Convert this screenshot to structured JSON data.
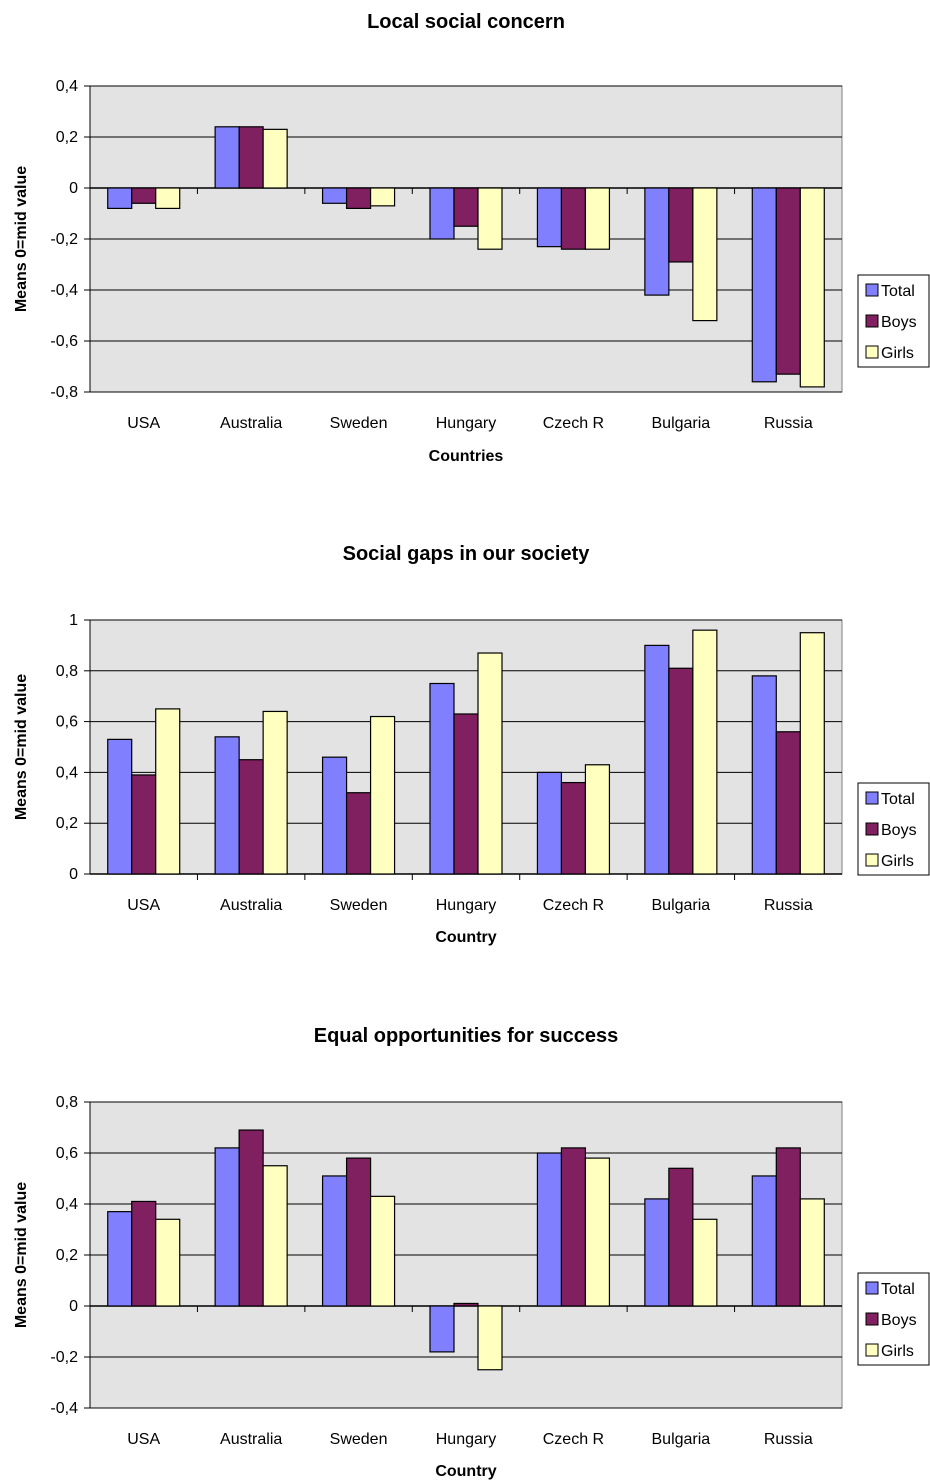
{
  "colors": {
    "plot_background": "#e3e3e3",
    "gridline": "#000000",
    "Total": "#8080ff",
    "Boys": "#802060",
    "Girls": "#ffffc0"
  },
  "chart_data": [
    {
      "type": "bar",
      "title": "Local social concern",
      "xlabel": "Countries",
      "ylabel": "Means 0=mid value",
      "categories": [
        "USA",
        "Australia",
        "Sweden",
        "Hungary",
        "Czech R",
        "Bulgaria",
        "Russia"
      ],
      "ylim": [
        -0.8,
        0.4
      ],
      "yticks": [
        0.4,
        0.2,
        0,
        -0.2,
        -0.4,
        -0.6,
        -0.8
      ],
      "ytick_labels": [
        "0,4",
        "0,2",
        "0",
        "-0,2",
        "-0,4",
        "-0,6",
        "-0,8"
      ],
      "grid": true,
      "legend_position": "right",
      "series": [
        {
          "name": "Total",
          "values": [
            -0.08,
            0.24,
            -0.06,
            -0.2,
            -0.23,
            -0.42,
            -0.76
          ]
        },
        {
          "name": "Boys",
          "values": [
            -0.06,
            0.24,
            -0.08,
            -0.15,
            -0.24,
            -0.29,
            -0.73
          ]
        },
        {
          "name": "Girls",
          "values": [
            -0.08,
            0.23,
            -0.07,
            -0.24,
            -0.24,
            -0.52,
            -0.78
          ]
        }
      ]
    },
    {
      "type": "bar",
      "title": "Social gaps in our society",
      "xlabel": "Country",
      "ylabel": "Means 0=mid value",
      "categories": [
        "USA",
        "Australia",
        "Sweden",
        "Hungary",
        "Czech R",
        "Bulgaria",
        "Russia"
      ],
      "ylim": [
        0,
        1
      ],
      "yticks": [
        1,
        0.8,
        0.6,
        0.4,
        0.2,
        0
      ],
      "ytick_labels": [
        "1",
        "0,8",
        "0,6",
        "0,4",
        "0,2",
        "0"
      ],
      "grid": true,
      "legend_position": "right",
      "series": [
        {
          "name": "Total",
          "values": [
            0.53,
            0.54,
            0.46,
            0.75,
            0.4,
            0.9,
            0.78
          ]
        },
        {
          "name": "Boys",
          "values": [
            0.39,
            0.45,
            0.32,
            0.63,
            0.36,
            0.81,
            0.56
          ]
        },
        {
          "name": "Girls",
          "values": [
            0.65,
            0.64,
            0.62,
            0.87,
            0.43,
            0.96,
            0.95
          ]
        }
      ]
    },
    {
      "type": "bar",
      "title": "Equal opportunities for success",
      "xlabel": "Country",
      "ylabel": "Means 0=mid value",
      "categories": [
        "USA",
        "Australia",
        "Sweden",
        "Hungary",
        "Czech R",
        "Bulgaria",
        "Russia"
      ],
      "ylim": [
        -0.4,
        0.8
      ],
      "yticks": [
        0.8,
        0.6,
        0.4,
        0.2,
        0,
        -0.2,
        -0.4
      ],
      "ytick_labels": [
        "0,8",
        "0,6",
        "0,4",
        "0,2",
        "0",
        "-0,2",
        "-0,4"
      ],
      "grid": true,
      "legend_position": "right",
      "series": [
        {
          "name": "Total",
          "values": [
            0.37,
            0.62,
            0.51,
            -0.18,
            0.6,
            0.42,
            0.51
          ]
        },
        {
          "name": "Boys",
          "values": [
            0.41,
            0.69,
            0.58,
            0.01,
            0.62,
            0.54,
            0.62
          ]
        },
        {
          "name": "Girls",
          "values": [
            0.34,
            0.55,
            0.43,
            -0.25,
            0.58,
            0.34,
            0.42
          ]
        }
      ]
    }
  ]
}
